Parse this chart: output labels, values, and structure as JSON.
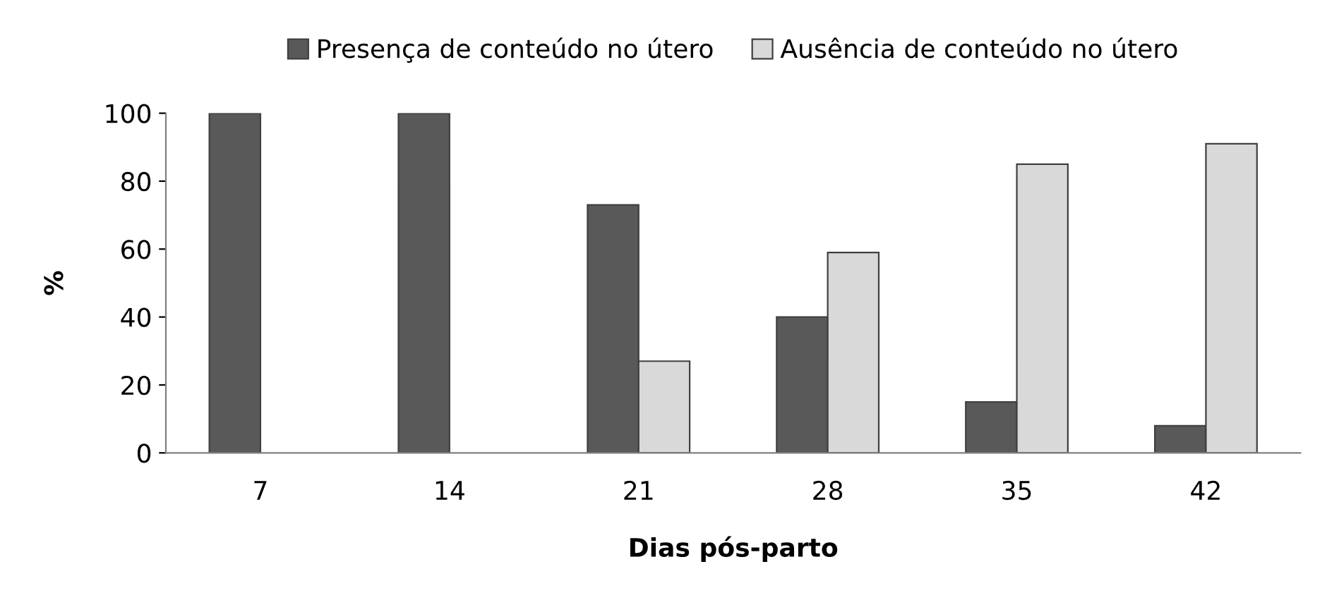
{
  "chart_data": {
    "type": "bar",
    "xlabel": "Dias pós-parto",
    "ylabel": "%",
    "categories": [
      "7",
      "14",
      "21",
      "28",
      "35",
      "42"
    ],
    "series": [
      {
        "name": "Presença de conteúdo no útero",
        "color": "#595959",
        "values": [
          100,
          100,
          73,
          40,
          15,
          8
        ]
      },
      {
        "name": "Ausência de conteúdo no útero",
        "color": "#d9d9d9",
        "values": [
          0,
          0,
          27,
          59,
          85,
          91
        ]
      }
    ],
    "ylim": [
      0,
      100
    ],
    "yticks": [
      0,
      20,
      40,
      60,
      80,
      100
    ],
    "grid": false,
    "legend": "top"
  }
}
